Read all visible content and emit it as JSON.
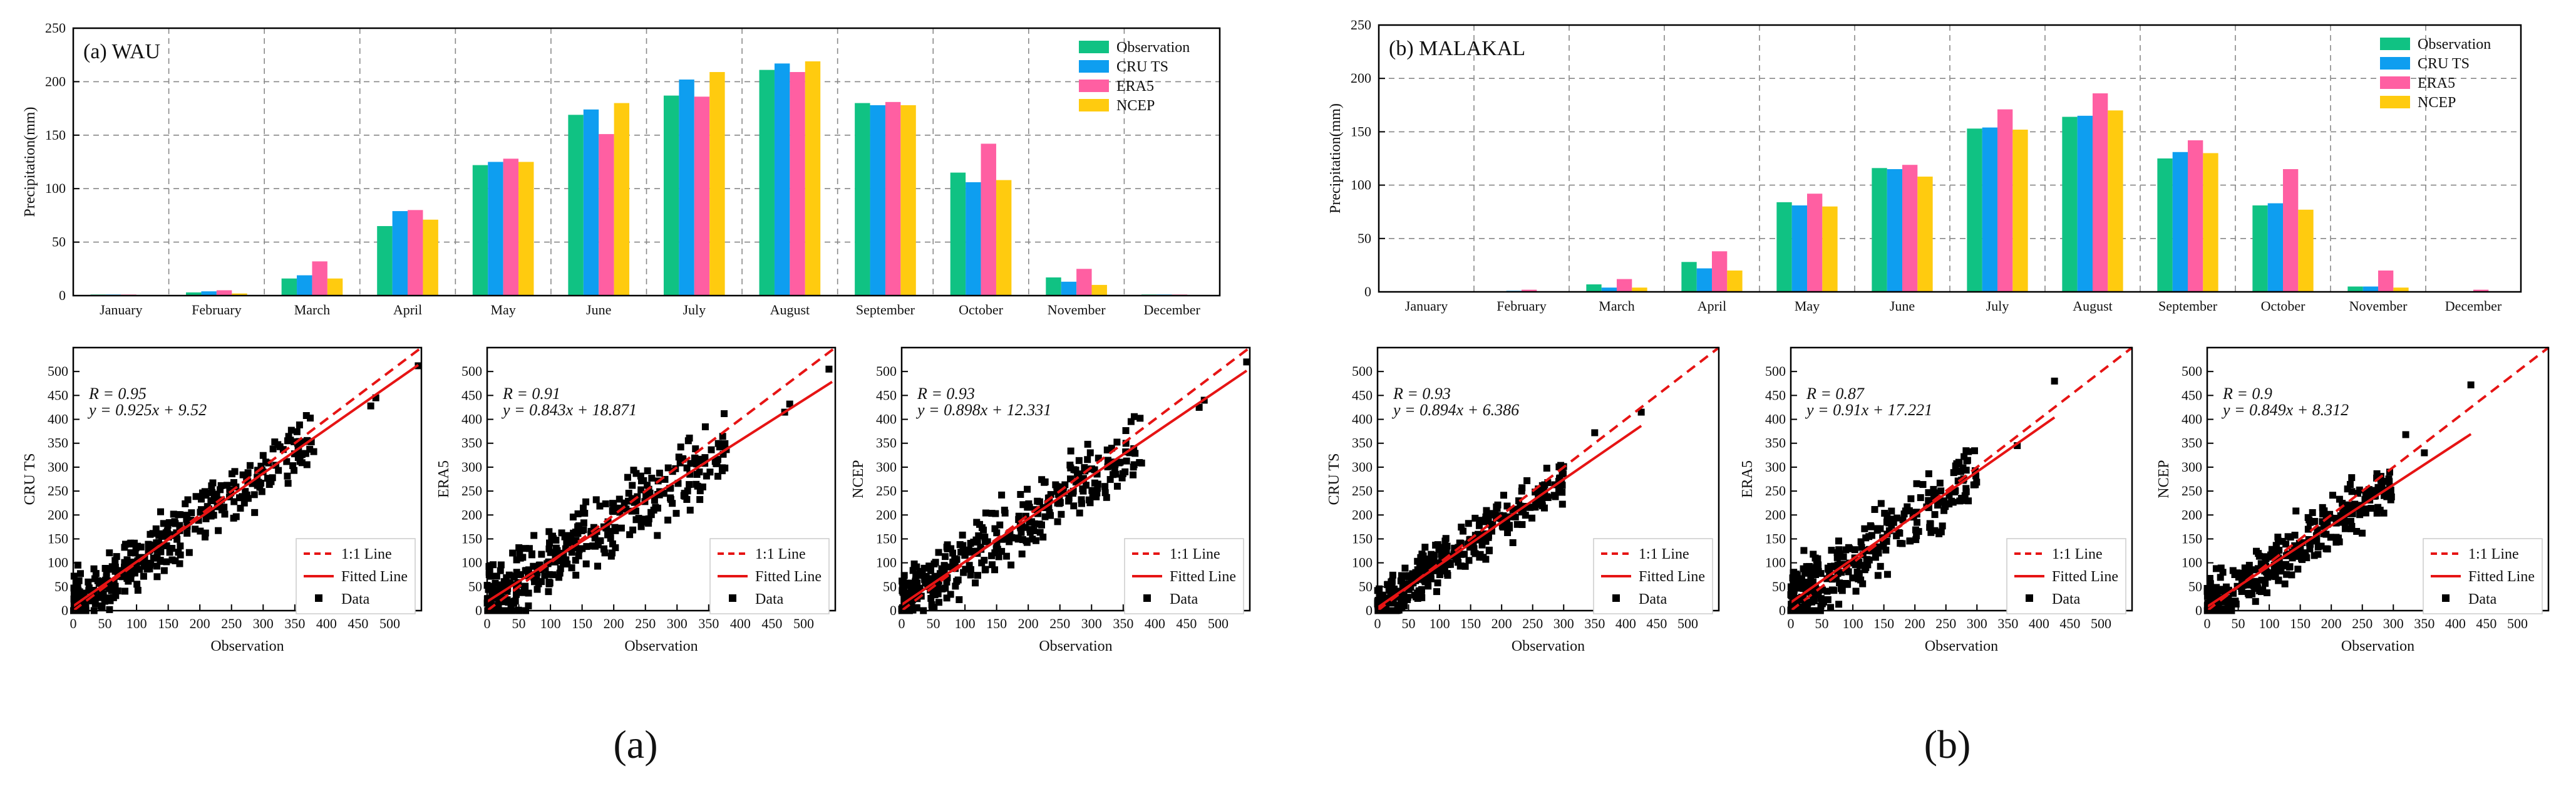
{
  "colors": {
    "Observation": "#10C283",
    "CRU TS": "#0E9EF0",
    "ERA5": "#FF5FA2",
    "NCEP": "#FFCB0F",
    "fit": "#E61414",
    "data": "#000000"
  },
  "captions": [
    "(a)",
    "(b)"
  ],
  "chart_data": [
    {
      "type": "bar",
      "title": "(a) WAU",
      "xlabel": "",
      "ylabel": "Precipitation(mm)",
      "ylim": [
        0,
        250
      ],
      "yticks": [
        0,
        50,
        100,
        150,
        200,
        250
      ],
      "grid": true,
      "legend": "top-right",
      "categories": [
        "January",
        "February",
        "March",
        "April",
        "May",
        "June",
        "July",
        "August",
        "September",
        "October",
        "November",
        "December"
      ],
      "series": [
        {
          "name": "Observation",
          "values": [
            1,
            3,
            16,
            65,
            122,
            169,
            187,
            211,
            180,
            115,
            17,
            1
          ]
        },
        {
          "name": "CRU TS",
          "values": [
            1,
            4,
            19,
            79,
            125,
            174,
            202,
            217,
            178,
            106,
            13,
            1
          ]
        },
        {
          "name": "ERA5",
          "values": [
            1,
            5,
            32,
            80,
            128,
            151,
            186,
            209,
            181,
            142,
            25,
            1
          ]
        },
        {
          "name": "NCEP",
          "values": [
            0,
            2,
            16,
            71,
            125,
            180,
            209,
            219,
            178,
            108,
            10,
            0
          ]
        }
      ]
    },
    {
      "type": "bar",
      "title": "(b) MALAKAL",
      "xlabel": "",
      "ylabel": "Precipitation(mm)",
      "ylim": [
        0,
        250
      ],
      "yticks": [
        0,
        50,
        100,
        150,
        200,
        250
      ],
      "grid": true,
      "legend": "top-right",
      "categories": [
        "January",
        "February",
        "March",
        "April",
        "May",
        "June",
        "July",
        "August",
        "September",
        "October",
        "November",
        "December"
      ],
      "series": [
        {
          "name": "Observation",
          "values": [
            0,
            0,
            7,
            28,
            84,
            116,
            153,
            164,
            125,
            81,
            5,
            0
          ]
        },
        {
          "name": "CRU TS",
          "values": [
            0,
            1,
            4,
            22,
            81,
            115,
            154,
            165,
            131,
            83,
            5,
            0
          ]
        },
        {
          "name": "ERA5",
          "values": [
            0,
            2,
            12,
            38,
            92,
            119,
            171,
            186,
            142,
            115,
            20,
            2
          ]
        },
        {
          "name": "NCEP",
          "values": [
            0,
            0,
            4,
            20,
            80,
            108,
            152,
            170,
            130,
            77,
            4,
            0
          ]
        }
      ]
    },
    {
      "type": "scatter",
      "title": "",
      "xlabel": "Observation",
      "ylabel": "CRU TS",
      "xlim": [
        0,
        550
      ],
      "ylim": [
        0,
        550
      ],
      "ticks": [
        0,
        50,
        100,
        150,
        200,
        250,
        300,
        350,
        400,
        450,
        500
      ],
      "stats": {
        "r": "R = 0.95",
        "eq": "y = 0.925x + 9.52"
      },
      "fit": {
        "slope": 0.925,
        "intercept": 9.52,
        "xmax": 545
      },
      "legend": [
        "1:1 Line",
        "Fitted Line",
        "Data"
      ],
      "cloud": {
        "n": 360,
        "xmax": 380,
        "spread": 48,
        "seed": 11,
        "outliers": [
          [
            478,
            445
          ],
          [
            545,
            512
          ],
          [
            470,
            428
          ]
        ]
      }
    },
    {
      "type": "scatter",
      "title": "",
      "xlabel": "Observation",
      "ylabel": "ERA5",
      "xlim": [
        0,
        550
      ],
      "ylim": [
        0,
        550
      ],
      "ticks": [
        0,
        50,
        100,
        150,
        200,
        250,
        300,
        350,
        400,
        450,
        500
      ],
      "stats": {
        "r": "R = 0.91",
        "eq": "y = 0.843x + 18.871"
      },
      "fit": {
        "slope": 0.843,
        "intercept": 18.871,
        "xmax": 545
      },
      "legend": [
        "1:1 Line",
        "Fitted Line",
        "Data"
      ],
      "cloud": {
        "n": 360,
        "xmax": 380,
        "spread": 62,
        "seed": 23,
        "outliers": [
          [
            478,
            432
          ],
          [
            540,
            505
          ],
          [
            470,
            415
          ]
        ]
      }
    },
    {
      "type": "scatter",
      "title": "",
      "xlabel": "Observation",
      "ylabel": "NCEP",
      "xlim": [
        0,
        550
      ],
      "ylim": [
        0,
        550
      ],
      "ticks": [
        0,
        50,
        100,
        150,
        200,
        250,
        300,
        350,
        400,
        450,
        500
      ],
      "stats": {
        "r": "R = 0.93",
        "eq": "y = 0.898x + 12.331"
      },
      "fit": {
        "slope": 0.898,
        "intercept": 12.331,
        "xmax": 545
      },
      "legend": [
        "1:1 Line",
        "Fitted Line",
        "Data"
      ],
      "cloud": {
        "n": 360,
        "xmax": 380,
        "spread": 55,
        "seed": 37,
        "outliers": [
          [
            478,
            440
          ],
          [
            545,
            520
          ],
          [
            470,
            425
          ]
        ]
      }
    },
    {
      "type": "scatter",
      "title": "",
      "xlabel": "Observation",
      "ylabel": "CRU TS",
      "xlim": [
        0,
        550
      ],
      "ylim": [
        0,
        550
      ],
      "ticks": [
        0,
        50,
        100,
        150,
        200,
        250,
        300,
        350,
        400,
        450,
        500
      ],
      "stats": {
        "r": "R = 0.93",
        "eq": "y = 0.894x + 6.386"
      },
      "fit": {
        "slope": 0.894,
        "intercept": 6.386,
        "xmax": 425
      },
      "legend": [
        "1:1 Line",
        "Fitted Line",
        "Data"
      ],
      "cloud": {
        "n": 320,
        "xmax": 300,
        "spread": 40,
        "seed": 51,
        "outliers": [
          [
            425,
            415
          ],
          [
            350,
            372
          ]
        ]
      }
    },
    {
      "type": "scatter",
      "title": "",
      "xlabel": "Observation",
      "ylabel": "ERA5",
      "xlim": [
        0,
        550
      ],
      "ylim": [
        0,
        550
      ],
      "ticks": [
        0,
        50,
        100,
        150,
        200,
        250,
        300,
        350,
        400,
        450,
        500
      ],
      "stats": {
        "r": "R = 0.87",
        "eq": "y = 0.91x + 17.221"
      },
      "fit": {
        "slope": 0.91,
        "intercept": 17.221,
        "xmax": 425
      },
      "legend": [
        "1:1 Line",
        "Fitted Line",
        "Data"
      ],
      "cloud": {
        "n": 320,
        "xmax": 300,
        "spread": 58,
        "seed": 67,
        "outliers": [
          [
            425,
            480
          ],
          [
            365,
            345
          ]
        ]
      }
    },
    {
      "type": "scatter",
      "title": "",
      "xlabel": "Observation",
      "ylabel": "NCEP",
      "xlim": [
        0,
        550
      ],
      "ylim": [
        0,
        550
      ],
      "ticks": [
        0,
        50,
        100,
        150,
        200,
        250,
        300,
        350,
        400,
        450,
        500
      ],
      "stats": {
        "r": "R = 0.9",
        "eq": "y = 0.849x + 8.312"
      },
      "fit": {
        "slope": 0.849,
        "intercept": 8.312,
        "xmax": 425
      },
      "legend": [
        "1:1 Line",
        "Fitted Line",
        "Data"
      ],
      "cloud": {
        "n": 320,
        "xmax": 300,
        "spread": 50,
        "seed": 83,
        "outliers": [
          [
            425,
            472
          ],
          [
            320,
            368
          ],
          [
            350,
            330
          ]
        ]
      }
    }
  ]
}
